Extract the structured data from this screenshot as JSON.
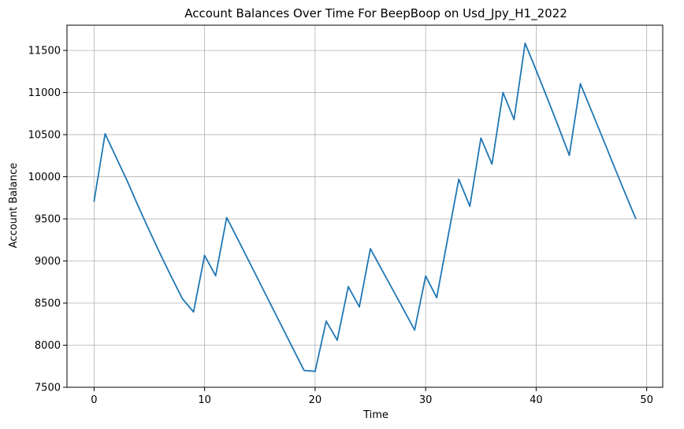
{
  "chart_data": {
    "type": "line",
    "title": "Account Balances Over Time For BeepBoop on Usd_Jpy_H1_2022",
    "xlabel": "Time",
    "ylabel": "Account Balance",
    "xlim": [
      -2.45,
      51.45
    ],
    "ylim": [
      7500,
      11800
    ],
    "xticks": [
      0,
      10,
      20,
      30,
      40,
      50
    ],
    "yticks": [
      7500,
      8000,
      8500,
      9000,
      9500,
      10000,
      10500,
      11000,
      11500
    ],
    "grid": true,
    "line_color": "#1f77b4",
    "series": [
      {
        "x": [
          0,
          1,
          2,
          3,
          4,
          5,
          6,
          7,
          8,
          9,
          10,
          11,
          12,
          13,
          14,
          15,
          16,
          17,
          18,
          19,
          20,
          21,
          22,
          23,
          24,
          25,
          26,
          27,
          28,
          29,
          30,
          31,
          32,
          33,
          34,
          35,
          36,
          37,
          38,
          39,
          40,
          41,
          42,
          43,
          44,
          45,
          46,
          47,
          48,
          49
        ],
        "values": [
          9710,
          10510,
          10230,
          9950,
          9650,
          9360,
          9080,
          8810,
          8550,
          8395,
          9065,
          8825,
          9515,
          9260,
          9000,
          8740,
          8480,
          8220,
          7960,
          7700,
          7690,
          8285,
          8060,
          8695,
          8455,
          9145,
          8905,
          8665,
          8425,
          8180,
          8820,
          8565,
          9270,
          9970,
          9650,
          10460,
          10150,
          11000,
          10680,
          11585,
          11265,
          10935,
          10600,
          10255,
          11105,
          10785,
          10465,
          10140,
          9820,
          9505
        ]
      }
    ]
  }
}
